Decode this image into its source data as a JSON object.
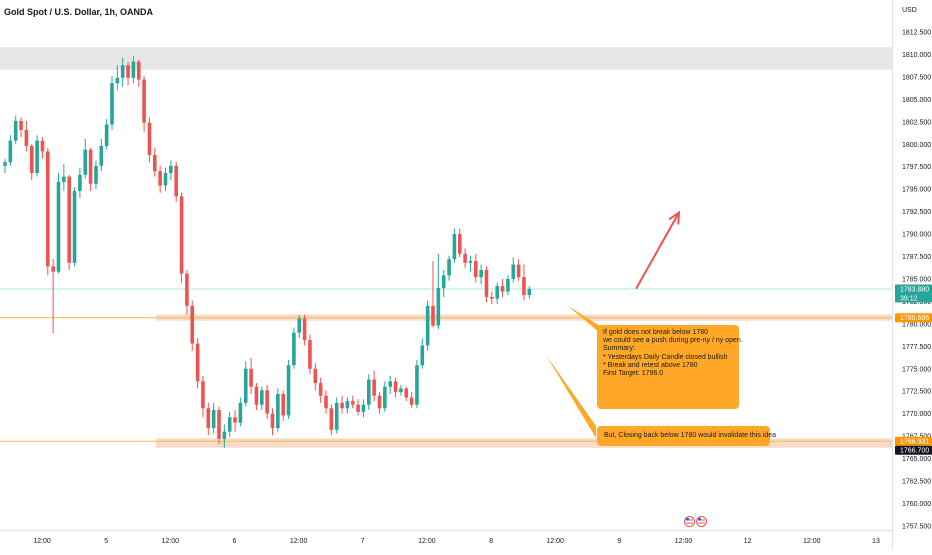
{
  "header": {
    "symbol_title": "Gold Spot / U.S. Dollar, 1h, OANDA",
    "currency": "USD"
  },
  "chart_data": {
    "type": "candlestick",
    "title": "Gold Spot / U.S. Dollar, 1h, OANDA",
    "ylim": [
      1757.5,
      1812.5
    ],
    "y_ticks": [
      "1812.500",
      "1810.000",
      "1807.500",
      "1805.000",
      "1802.500",
      "1800.000",
      "1797.500",
      "1795.000",
      "1792.500",
      "1790.000",
      "1787.500",
      "1785.000",
      "1782.500",
      "1780.000",
      "1777.500",
      "1775.000",
      "1772.500",
      "1770.000",
      "1767.500",
      "1765.000",
      "1762.500",
      "1760.000",
      "1757.500"
    ],
    "x_ticks": [
      "12:00",
      "5",
      "12:00",
      "6",
      "12:00",
      "7",
      "12:00",
      "8",
      "12:00",
      "9",
      "12:00",
      "12",
      "12:00",
      "13"
    ],
    "price_labels": [
      {
        "value": 1783.88,
        "text": "1783.880",
        "countdown": "39:12",
        "color": "#26a69a"
      },
      {
        "value": 1780.686,
        "text": "1780.686",
        "color": "#ff9800"
      },
      {
        "value": 1766.931,
        "text": "1766.931",
        "color": "#ff9800"
      },
      {
        "value": 1766.7,
        "text": "1766.700",
        "color": "#131722"
      }
    ],
    "zones": [
      {
        "from": 1808.3,
        "to": 1810.8,
        "color": "#e6e6e6"
      },
      {
        "from": 1780.35,
        "to": 1781.05,
        "color": "#f4dcc8"
      },
      {
        "from": 1766.2,
        "to": 1767.25,
        "color": "#f4dcc8"
      }
    ],
    "levels": [
      {
        "value": 1783.88,
        "color": "#8fd3cd",
        "style": "dotted"
      },
      {
        "value": 1780.686,
        "color": "#ffb74d",
        "style": "solid"
      },
      {
        "value": 1766.931,
        "color": "#ffb74d",
        "style": "solid"
      }
    ],
    "arrow": {
      "from": [
        9.26,
        1783.9
      ],
      "to": [
        9.93,
        1792.4
      ],
      "color": "#ef5350"
    },
    "candles": [
      [
        1797.6,
        1798.4,
        1796.8,
        1798.0
      ],
      [
        1798.0,
        1801.0,
        1797.6,
        1800.4
      ],
      [
        1800.4,
        1803.2,
        1800.0,
        1802.6
      ],
      [
        1802.6,
        1803.0,
        1800.8,
        1801.6
      ],
      [
        1801.6,
        1802.6,
        1799.2,
        1799.8
      ],
      [
        1799.8,
        1800.0,
        1796.0,
        1796.8
      ],
      [
        1796.8,
        1801.0,
        1796.4,
        1800.4
      ],
      [
        1800.4,
        1800.8,
        1798.4,
        1799.2
      ],
      [
        1799.2,
        1799.6,
        1785.4,
        1786.4
      ],
      [
        1786.4,
        1787.2,
        1779.0,
        1785.8
      ],
      [
        1785.8,
        1796.8,
        1785.6,
        1795.8
      ],
      [
        1795.8,
        1797.8,
        1794.8,
        1796.4
      ],
      [
        1796.4,
        1796.6,
        1786.0,
        1786.8
      ],
      [
        1786.8,
        1795.2,
        1786.4,
        1794.8
      ],
      [
        1794.8,
        1797.4,
        1794.0,
        1796.6
      ],
      [
        1796.6,
        1800.6,
        1796.2,
        1799.4
      ],
      [
        1799.4,
        1799.6,
        1794.8,
        1795.6
      ],
      [
        1795.6,
        1798.2,
        1795.0,
        1797.6
      ],
      [
        1797.6,
        1800.6,
        1797.0,
        1799.8
      ],
      [
        1799.8,
        1802.8,
        1799.4,
        1802.2
      ],
      [
        1802.2,
        1807.6,
        1801.6,
        1806.8
      ],
      [
        1806.8,
        1808.8,
        1806.0,
        1807.4
      ],
      [
        1807.4,
        1809.6,
        1806.4,
        1808.8
      ],
      [
        1808.8,
        1809.2,
        1806.6,
        1807.4
      ],
      [
        1807.4,
        1809.8,
        1806.8,
        1809.2
      ],
      [
        1809.2,
        1809.4,
        1806.4,
        1807.2
      ],
      [
        1807.2,
        1807.6,
        1801.4,
        1802.4
      ],
      [
        1802.4,
        1803.0,
        1798.0,
        1798.8
      ],
      [
        1798.8,
        1799.6,
        1796.4,
        1797.0
      ],
      [
        1797.0,
        1797.6,
        1794.6,
        1795.4
      ],
      [
        1795.4,
        1797.4,
        1794.8,
        1796.8
      ],
      [
        1796.8,
        1798.2,
        1796.0,
        1797.6
      ],
      [
        1797.6,
        1798.0,
        1793.6,
        1794.2
      ],
      [
        1794.2,
        1794.6,
        1784.6,
        1785.6
      ],
      [
        1785.6,
        1786.0,
        1781.0,
        1782.0
      ],
      [
        1782.0,
        1782.6,
        1777.0,
        1777.8
      ],
      [
        1777.8,
        1778.4,
        1772.8,
        1773.6
      ],
      [
        1773.6,
        1774.2,
        1769.6,
        1770.6
      ],
      [
        1770.6,
        1771.2,
        1767.6,
        1768.4
      ],
      [
        1768.4,
        1771.2,
        1767.8,
        1770.4
      ],
      [
        1770.4,
        1770.8,
        1766.6,
        1767.2
      ],
      [
        1767.2,
        1768.8,
        1766.2,
        1768.0
      ],
      [
        1768.0,
        1770.2,
        1767.4,
        1769.6
      ],
      [
        1769.6,
        1770.4,
        1768.0,
        1769.0
      ],
      [
        1769.0,
        1771.8,
        1768.6,
        1771.2
      ],
      [
        1771.2,
        1775.8,
        1770.8,
        1775.0
      ],
      [
        1775.0,
        1776.2,
        1772.2,
        1773.0
      ],
      [
        1773.0,
        1773.4,
        1770.4,
        1771.0
      ],
      [
        1771.0,
        1773.0,
        1770.4,
        1772.6
      ],
      [
        1772.6,
        1773.2,
        1769.4,
        1770.0
      ],
      [
        1770.0,
        1770.6,
        1767.6,
        1768.4
      ],
      [
        1768.4,
        1772.8,
        1768.0,
        1772.2
      ],
      [
        1772.2,
        1772.6,
        1769.2,
        1769.8
      ],
      [
        1769.8,
        1776.0,
        1769.4,
        1775.4
      ],
      [
        1775.4,
        1779.6,
        1775.0,
        1779.0
      ],
      [
        1779.0,
        1781.0,
        1778.4,
        1780.6
      ],
      [
        1780.6,
        1781.0,
        1777.6,
        1778.2
      ],
      [
        1778.2,
        1778.8,
        1774.4,
        1775.0
      ],
      [
        1775.0,
        1775.6,
        1772.6,
        1773.4
      ],
      [
        1773.4,
        1774.0,
        1771.2,
        1772.0
      ],
      [
        1772.0,
        1772.6,
        1770.0,
        1770.6
      ],
      [
        1770.6,
        1771.0,
        1767.6,
        1768.2
      ],
      [
        1768.2,
        1771.8,
        1767.8,
        1771.2
      ],
      [
        1771.2,
        1772.0,
        1770.0,
        1770.6
      ],
      [
        1770.6,
        1771.8,
        1770.0,
        1771.4
      ],
      [
        1771.4,
        1772.0,
        1770.6,
        1771.0
      ],
      [
        1771.0,
        1771.6,
        1769.8,
        1770.2
      ],
      [
        1770.2,
        1771.6,
        1769.6,
        1771.0
      ],
      [
        1771.0,
        1774.4,
        1770.4,
        1773.8
      ],
      [
        1773.8,
        1774.8,
        1771.4,
        1772.0
      ],
      [
        1772.0,
        1772.4,
        1770.0,
        1770.6
      ],
      [
        1770.6,
        1773.6,
        1770.2,
        1773.0
      ],
      [
        1773.0,
        1774.2,
        1772.2,
        1773.6
      ],
      [
        1773.6,
        1774.0,
        1771.8,
        1772.4
      ],
      [
        1772.4,
        1773.2,
        1772.0,
        1772.8
      ],
      [
        1772.8,
        1773.0,
        1771.4,
        1771.8
      ],
      [
        1771.8,
        1772.4,
        1770.6,
        1771.0
      ],
      [
        1771.0,
        1776.0,
        1770.6,
        1775.4
      ],
      [
        1775.4,
        1778.4,
        1775.0,
        1777.6
      ],
      [
        1777.6,
        1782.6,
        1777.0,
        1782.0
      ],
      [
        1782.0,
        1787.0,
        1779.6,
        1779.8
      ],
      [
        1779.8,
        1787.8,
        1779.4,
        1784.0
      ],
      [
        1784.0,
        1786.0,
        1783.0,
        1785.4
      ],
      [
        1785.4,
        1787.6,
        1784.8,
        1787.2
      ],
      [
        1787.2,
        1790.6,
        1786.8,
        1790.0
      ],
      [
        1790.0,
        1790.6,
        1787.4,
        1787.8
      ],
      [
        1787.8,
        1788.4,
        1786.2,
        1786.8
      ],
      [
        1786.8,
        1787.6,
        1785.8,
        1787.0
      ],
      [
        1787.0,
        1787.8,
        1784.6,
        1785.2
      ],
      [
        1785.2,
        1786.6,
        1784.4,
        1786.0
      ],
      [
        1786.0,
        1786.4,
        1782.4,
        1783.0
      ],
      [
        1783.0,
        1783.6,
        1782.2,
        1782.8
      ],
      [
        1782.8,
        1784.6,
        1782.2,
        1784.2
      ],
      [
        1784.2,
        1785.0,
        1783.0,
        1783.6
      ],
      [
        1783.6,
        1785.4,
        1783.2,
        1785.0
      ],
      [
        1785.0,
        1787.4,
        1784.6,
        1786.6
      ],
      [
        1786.6,
        1787.2,
        1784.8,
        1785.2
      ],
      [
        1785.2,
        1786.6,
        1782.6,
        1783.2
      ],
      [
        1783.2,
        1784.2,
        1782.8,
        1783.88
      ]
    ],
    "annotations": [
      {
        "lines": [
          "If gold does not break below 1780",
          "we could see a push during pre-ny / ny open.",
          "",
          "Summary:",
          "* Yesterdays Daily Candle closed bullish",
          "* Break and retest above 1780",
          "",
          "First Target: 1796.0"
        ]
      },
      {
        "lines": [
          "But, Closing back below 1780 would invalidate this idea"
        ]
      }
    ]
  }
}
